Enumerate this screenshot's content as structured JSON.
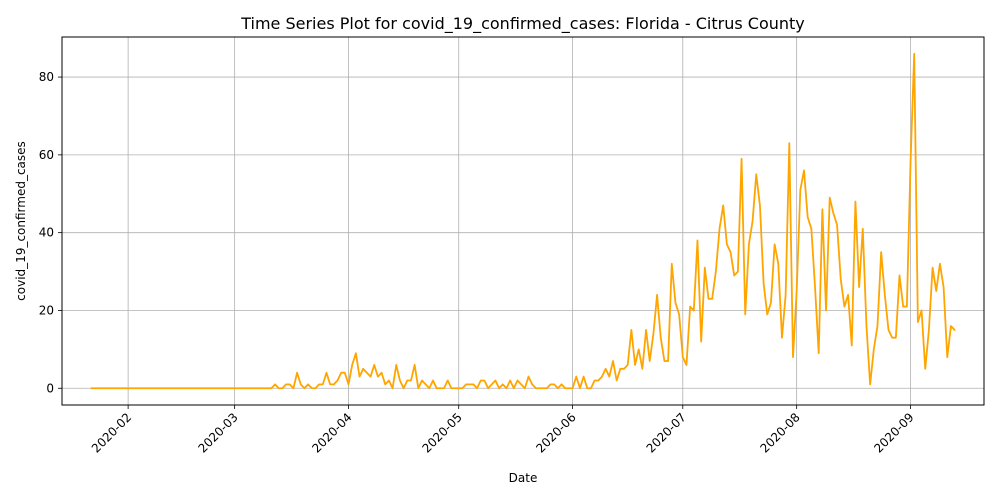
{
  "chart_data": {
    "type": "line",
    "title": "Time Series Plot for covid_19_confirmed_cases: Florida - Citrus County",
    "xlabel": "Date",
    "ylabel": "covid_19_confirmed_cases",
    "x_tick_labels": [
      "2020-02",
      "2020-03",
      "2020-04",
      "2020-05",
      "2020-06",
      "2020-07",
      "2020-08",
      "2020-09"
    ],
    "y_ticks": [
      0,
      20,
      40,
      60,
      80
    ],
    "xlim": [
      "2020-01-14",
      "2020-09-21"
    ],
    "ylim": [
      -4.3,
      90.3
    ],
    "grid": true,
    "line_color": "#FFA500",
    "series": [
      {
        "start_date": "2020-01-22",
        "values": [
          0,
          0,
          0,
          0,
          0,
          0,
          0,
          0,
          0,
          0,
          0,
          0,
          0,
          0,
          0,
          0,
          0,
          0,
          0,
          0,
          0,
          0,
          0,
          0,
          0,
          0,
          0,
          0,
          0,
          0,
          0,
          0,
          0,
          0,
          0,
          0,
          0,
          0,
          0,
          0,
          0,
          0,
          0,
          0,
          0,
          0,
          0,
          0,
          0,
          0,
          1,
          0,
          0,
          1,
          1,
          0,
          4,
          1,
          0,
          1,
          0,
          0,
          1,
          1,
          4,
          1,
          1,
          2,
          4,
          4,
          1,
          6,
          9,
          3,
          5,
          4,
          3,
          6,
          3,
          4,
          1,
          2,
          0,
          6,
          2,
          0,
          2,
          2,
          6,
          0,
          2,
          1,
          0,
          2,
          0,
          0,
          0,
          2,
          0,
          0,
          0,
          0,
          1,
          1,
          1,
          0,
          2,
          2,
          0,
          1,
          2,
          0,
          1,
          0,
          2,
          0,
          2,
          1,
          0,
          3,
          1,
          0,
          0,
          0,
          0,
          1,
          1,
          0,
          1,
          0,
          0,
          0,
          3,
          0,
          3,
          0,
          0,
          2,
          2,
          3,
          5,
          3,
          7,
          2,
          5,
          5,
          6,
          15,
          6,
          10,
          5,
          15,
          7,
          14,
          24,
          13,
          7,
          7,
          32,
          22,
          19,
          8,
          6,
          21,
          20,
          38,
          12,
          31,
          23,
          23,
          30,
          41,
          47,
          37,
          35,
          29,
          30,
          59,
          19,
          37,
          43,
          55,
          47,
          27,
          19,
          22,
          37,
          32,
          13,
          24,
          63,
          8,
          25,
          51,
          56,
          44,
          41,
          26,
          9,
          46,
          20,
          49,
          45,
          42,
          28,
          21,
          24,
          11,
          48,
          26,
          41,
          16,
          1,
          10,
          16,
          35,
          24,
          15,
          13,
          13,
          29,
          21,
          21,
          58,
          86,
          17,
          20,
          5,
          15,
          31,
          25,
          32,
          26,
          8,
          16,
          15
        ]
      }
    ]
  }
}
